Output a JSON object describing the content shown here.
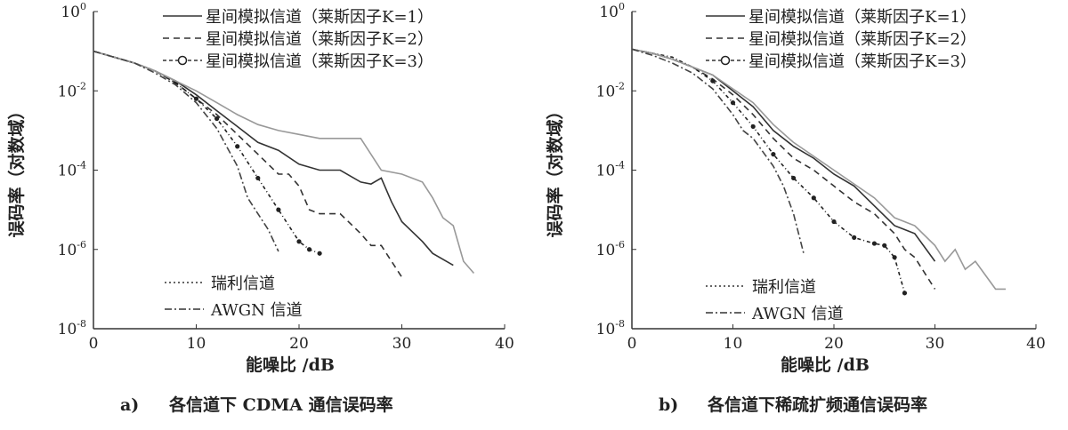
{
  "chart_data": [
    {
      "type": "line",
      "panel": "a)",
      "caption": "各信道下 CDMA 通信误码率",
      "xlabel": "能噪比 /dB",
      "ylabel": "误码率（对数域）",
      "xlim": [
        0,
        40
      ],
      "ylim_log10": [
        -8,
        0
      ],
      "xticks": [
        "0",
        "10",
        "20",
        "30",
        "40"
      ],
      "yticks": [
        {
          "base": "10",
          "exp": "0"
        },
        {
          "base": "10",
          "exp": "-2"
        },
        {
          "base": "10",
          "exp": "-4"
        },
        {
          "base": "10",
          "exp": "-6"
        },
        {
          "base": "10",
          "exp": "-8"
        }
      ],
      "legend_top": [
        "星间模拟信道（莱斯因子K=1）",
        "星间模拟信道（莱斯因子K=2）",
        "星间模拟信道（莱斯因子K=3）"
      ],
      "legend_bottom": [
        "瑞利信道",
        "AWGN 信道"
      ],
      "series": [
        {
          "name": "星间模拟信道（莱斯因子K=1）",
          "style": "solid",
          "color": "#333333",
          "x": [
            0,
            2,
            4,
            6,
            8,
            10,
            12,
            14,
            16,
            18,
            20,
            22,
            24,
            26,
            27,
            28,
            29,
            30,
            32,
            33,
            35
          ],
          "log10_ber": [
            -1,
            -1.15,
            -1.3,
            -1.5,
            -1.75,
            -2.1,
            -2.5,
            -2.9,
            -3.3,
            -3.5,
            -3.85,
            -4.0,
            -4.0,
            -4.3,
            -4.35,
            -4.2,
            -4.8,
            -5.3,
            -5.8,
            -6.1,
            -6.4
          ]
        },
        {
          "name": "星间模拟信道（莱斯因子K=2）",
          "style": "dashed",
          "color": "#333333",
          "x": [
            0,
            2,
            4,
            6,
            8,
            10,
            12,
            14,
            16,
            18,
            19,
            20,
            21,
            22,
            24,
            26,
            27,
            28,
            29,
            30
          ],
          "log10_ber": [
            -1,
            -1.15,
            -1.3,
            -1.5,
            -1.8,
            -2.2,
            -2.6,
            -3.1,
            -3.6,
            -4.1,
            -4.1,
            -4.4,
            -5.0,
            -5.1,
            -5.1,
            -5.6,
            -5.9,
            -5.9,
            -6.3,
            -6.7
          ]
        },
        {
          "name": "星间模拟信道（莱斯因子K=3）",
          "style": "circle",
          "color": "#222222",
          "x": [
            0,
            2,
            4,
            6,
            8,
            10,
            12,
            14,
            16,
            18,
            20,
            21,
            22
          ],
          "log10_ber": [
            -1,
            -1.15,
            -1.3,
            -1.5,
            -1.8,
            -2.2,
            -2.7,
            -3.4,
            -4.2,
            -5.0,
            -5.8,
            -6.0,
            -6.1
          ]
        },
        {
          "name": "瑞利信道",
          "style": "dotted",
          "color": "#999999",
          "x": [
            0,
            2,
            4,
            6,
            8,
            10,
            12,
            14,
            16,
            18,
            20,
            22,
            24,
            26,
            28,
            30,
            32,
            33,
            34,
            35,
            36,
            37
          ],
          "log10_ber": [
            -1,
            -1.15,
            -1.3,
            -1.5,
            -1.75,
            -2.0,
            -2.3,
            -2.6,
            -2.85,
            -3.0,
            -3.1,
            -3.2,
            -3.2,
            -3.2,
            -4.0,
            -4.1,
            -4.3,
            -4.7,
            -5.2,
            -5.4,
            -6.3,
            -6.6
          ]
        },
        {
          "name": "AWGN 信道",
          "style": "dashdot",
          "color": "#444444",
          "x": [
            0,
            2,
            4,
            6,
            8,
            10,
            12,
            14,
            15,
            16,
            17,
            18
          ],
          "log10_ber": [
            -1,
            -1.15,
            -1.3,
            -1.55,
            -1.85,
            -2.3,
            -2.95,
            -3.9,
            -4.7,
            -5.1,
            -5.5,
            -6.05
          ]
        }
      ]
    },
    {
      "type": "line",
      "panel": "b)",
      "caption": "各信道下稀疏扩频通信误码率",
      "xlabel": "能噪比 /dB",
      "ylabel": "误码率（对数域）",
      "xlim": [
        0,
        40
      ],
      "ylim_log10": [
        -8,
        0
      ],
      "xticks": [
        "0",
        "10",
        "20",
        "30",
        "40"
      ],
      "yticks": [
        {
          "base": "10",
          "exp": "0"
        },
        {
          "base": "10",
          "exp": "-2"
        },
        {
          "base": "10",
          "exp": "-4"
        },
        {
          "base": "10",
          "exp": "-6"
        },
        {
          "base": "10",
          "exp": "-8"
        }
      ],
      "legend_top": [
        "星间模拟信道（莱斯因子K=1）",
        "星间模拟信道（莱斯因子K=2）",
        "星间模拟信道（莱斯因子K=3）"
      ],
      "legend_bottom": [
        "瑞利信道",
        "AWGN 信道"
      ],
      "series": [
        {
          "name": "星间模拟信道（莱斯因子K=1）",
          "style": "solid",
          "color": "#333333",
          "x": [
            0,
            2,
            4,
            6,
            8,
            10,
            12,
            14,
            16,
            18,
            20,
            22,
            24,
            26,
            28,
            30
          ],
          "log10_ber": [
            -0.95,
            -1.05,
            -1.2,
            -1.4,
            -1.6,
            -2.0,
            -2.4,
            -3.0,
            -3.4,
            -3.7,
            -4.1,
            -4.4,
            -4.9,
            -5.4,
            -5.6,
            -6.3
          ]
        },
        {
          "name": "星间模拟信道（莱斯因子K=2）",
          "style": "dashed",
          "color": "#333333",
          "x": [
            0,
            2,
            4,
            6,
            8,
            10,
            12,
            14,
            16,
            18,
            20,
            22,
            24,
            26,
            27,
            28,
            30
          ],
          "log10_ber": [
            -0.95,
            -1.05,
            -1.2,
            -1.4,
            -1.7,
            -2.1,
            -2.6,
            -3.2,
            -3.7,
            -4.0,
            -4.4,
            -4.8,
            -5.1,
            -5.6,
            -6.0,
            -6.2,
            -7.0
          ]
        },
        {
          "name": "星间模拟信道（莱斯因子K=3）",
          "style": "circle",
          "color": "#222222",
          "x": [
            0,
            2,
            4,
            6,
            8,
            10,
            12,
            14,
            16,
            18,
            20,
            22,
            24,
            25,
            26,
            27
          ],
          "log10_ber": [
            -0.95,
            -1.05,
            -1.15,
            -1.4,
            -1.75,
            -2.3,
            -2.9,
            -3.6,
            -4.2,
            -4.7,
            -5.3,
            -5.7,
            -5.85,
            -5.9,
            -6.2,
            -7.1
          ]
        },
        {
          "name": "瑞利信道",
          "style": "dotted",
          "color": "#999999",
          "x": [
            0,
            2,
            4,
            6,
            8,
            10,
            12,
            14,
            16,
            18,
            20,
            22,
            24,
            26,
            28,
            30,
            31,
            32,
            33,
            34,
            36,
            37
          ],
          "log10_ber": [
            -0.95,
            -1.05,
            -1.2,
            -1.4,
            -1.6,
            -1.95,
            -2.3,
            -2.85,
            -3.3,
            -3.65,
            -4.0,
            -4.35,
            -4.7,
            -5.2,
            -5.4,
            -5.9,
            -6.3,
            -6.0,
            -6.5,
            -6.3,
            -7.0,
            -7.0
          ]
        },
        {
          "name": "AWGN 信道",
          "style": "dashdot",
          "color": "#444444",
          "x": [
            0,
            2,
            4,
            6,
            8,
            10,
            11,
            12,
            14,
            15,
            16,
            17
          ],
          "log10_ber": [
            -0.95,
            -1.1,
            -1.3,
            -1.55,
            -1.95,
            -2.6,
            -3.0,
            -3.2,
            -3.9,
            -4.4,
            -5.1,
            -6.1
          ]
        }
      ]
    }
  ]
}
